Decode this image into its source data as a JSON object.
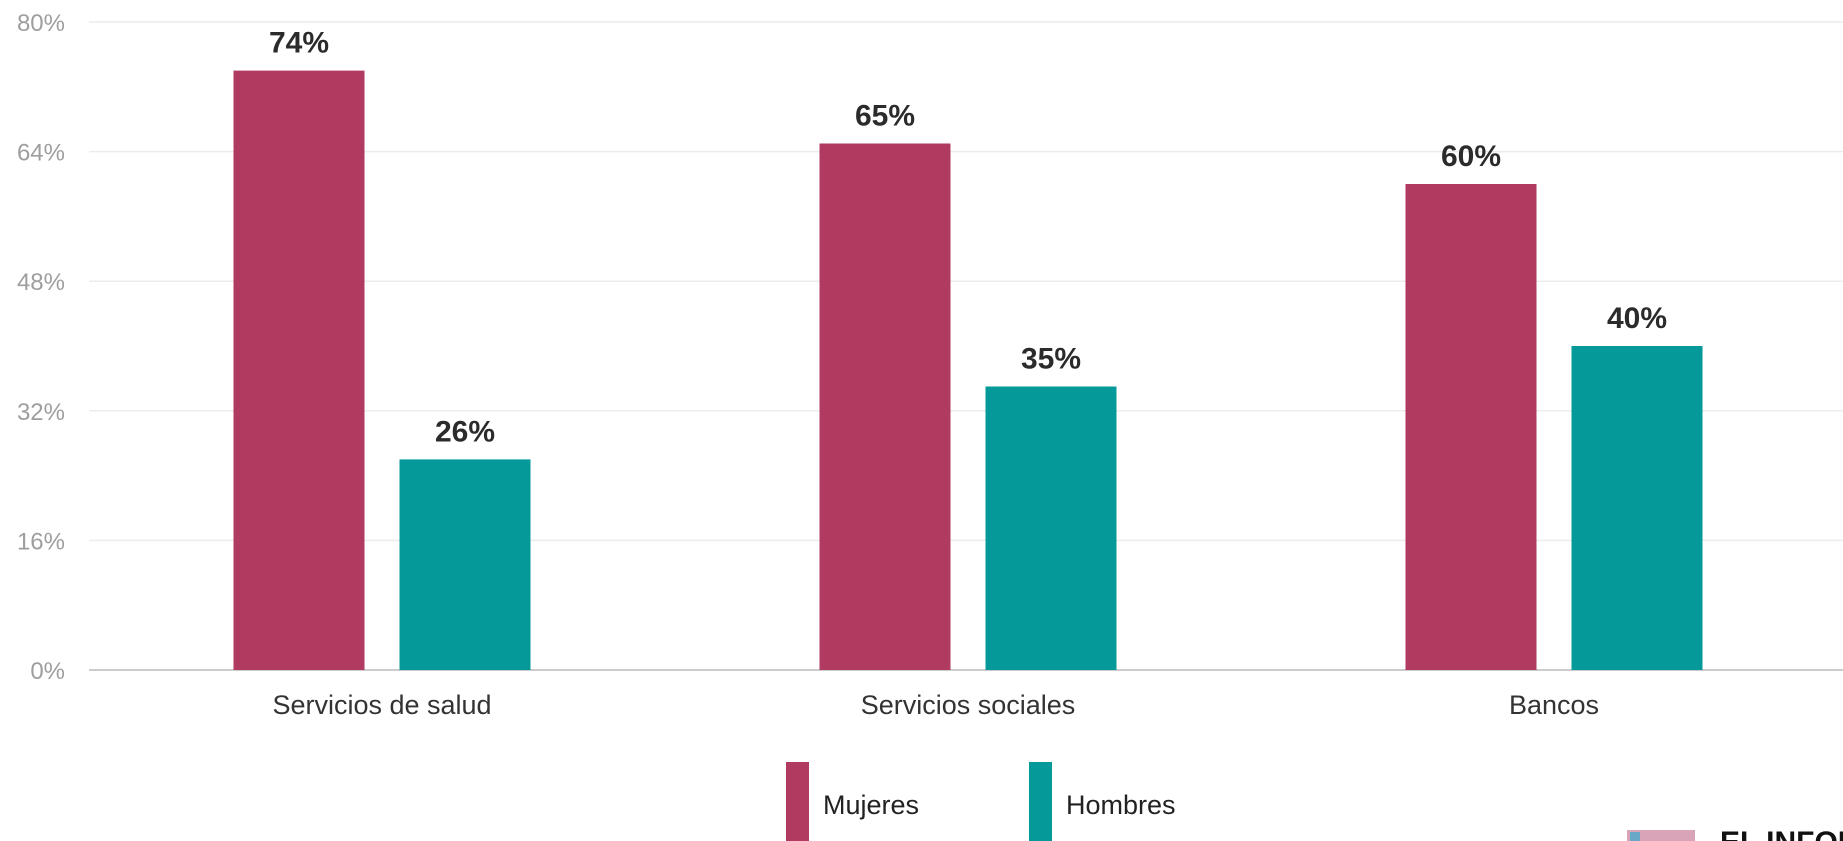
{
  "chart_data": {
    "type": "bar",
    "categories": [
      "Servicios de salud",
      "Servicios sociales",
      "Bancos"
    ],
    "series": [
      {
        "name": "Mujeres",
        "values": [
          74,
          65,
          60
        ],
        "labels": [
          "74%",
          "65%",
          "60%"
        ],
        "color": "#b03a60"
      },
      {
        "name": "Hombres",
        "values": [
          26,
          35,
          40
        ],
        "labels": [
          "26%",
          "35%",
          "40%"
        ],
        "color": "#05999a"
      }
    ],
    "ylim": [
      0,
      80
    ],
    "yticks": [
      0,
      16,
      32,
      48,
      64,
      80
    ],
    "ytick_labels": [
      "0%",
      "16%",
      "32%",
      "48%",
      "64%",
      "80%"
    ],
    "grid": true,
    "legend_position": "bottom-center"
  },
  "colors": {
    "grid": "#ececec",
    "axis": "#cccccc"
  },
  "logo": {
    "text": "EL INFOR"
  }
}
